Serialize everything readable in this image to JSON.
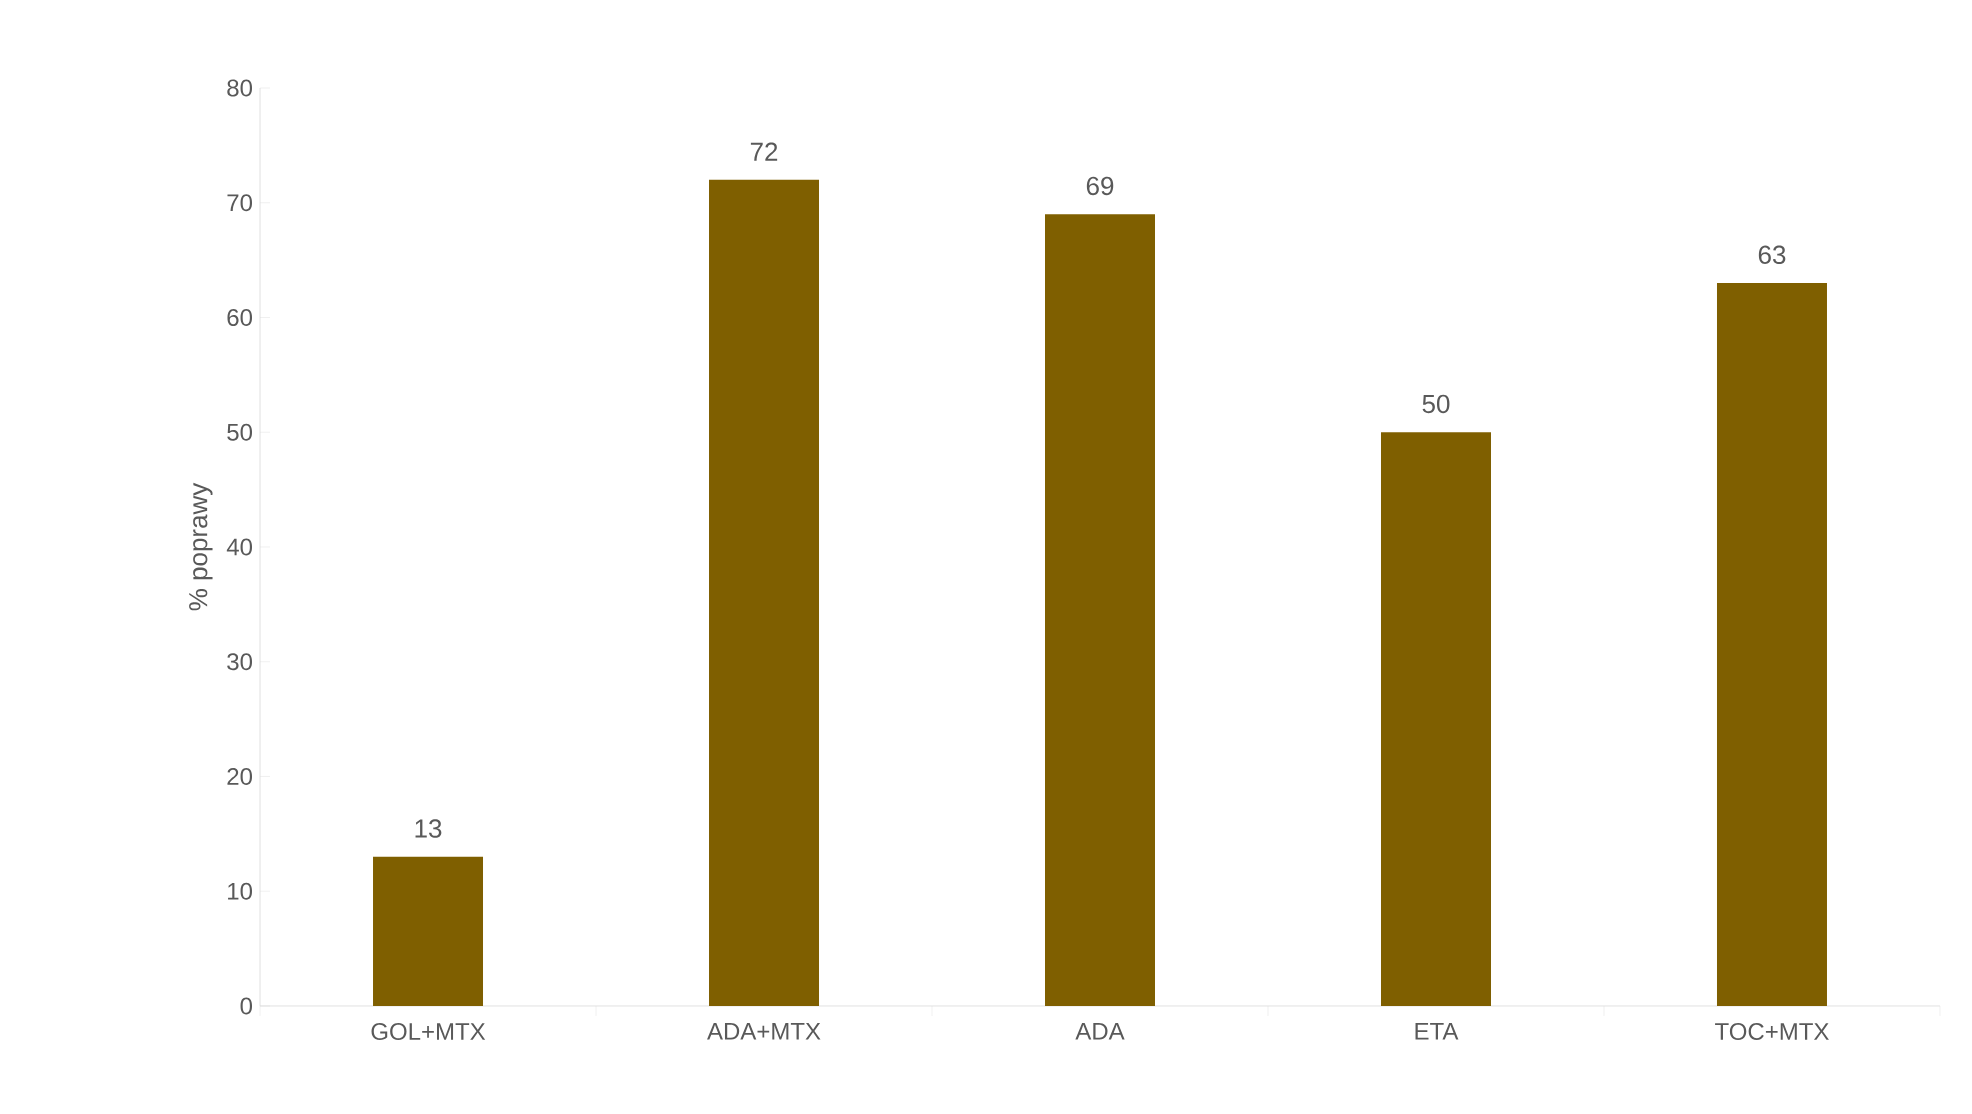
{
  "chart_data": {
    "type": "bar",
    "ylabel": "% poprawy",
    "categories": [
      "GOL+MTX",
      "ADA+MTX",
      "ADA",
      "ETA",
      "TOC+MTX"
    ],
    "values": [
      13,
      72,
      69,
      50,
      63
    ],
    "color": "#7f5f00",
    "data_labels": true,
    "ylim": [
      0,
      80
    ],
    "yticks": [
      0,
      10,
      20,
      30,
      40,
      50,
      60,
      70,
      80
    ]
  }
}
